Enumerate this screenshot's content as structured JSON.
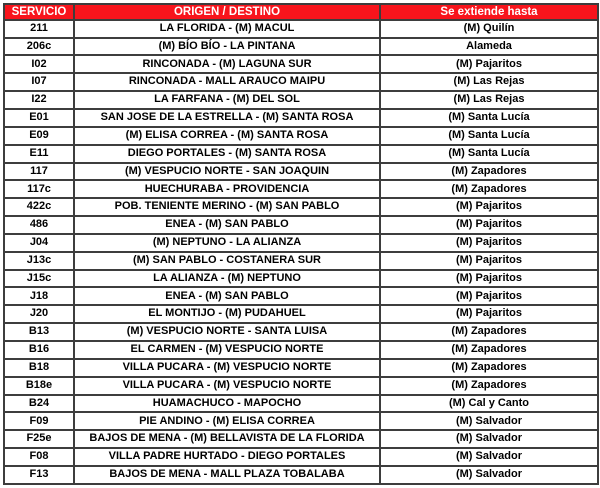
{
  "colors": {
    "header_bg": "#F8141C",
    "header_text": "#FFFFFF",
    "border": "#3D3D3D",
    "row_text": "#000000"
  },
  "table": {
    "columns": [
      {
        "label": "SERVICIO"
      },
      {
        "label": "ORIGEN / DESTINO"
      },
      {
        "label": "Se extiende hasta"
      }
    ],
    "rows": [
      {
        "service": "211",
        "route": "LA FLORIDA - (M) MACUL",
        "extends_to": "(M) Quilín"
      },
      {
        "service": "206c",
        "route": "(M) BÍO BÍO - LA PINTANA",
        "extends_to": "Alameda"
      },
      {
        "service": "I02",
        "route": "RINCONADA - (M) LAGUNA SUR",
        "extends_to": "(M) Pajaritos"
      },
      {
        "service": "I07",
        "route": "RINCONADA - MALL ARAUCO MAIPU",
        "extends_to": "(M) Las Rejas"
      },
      {
        "service": "I22",
        "route": "LA FARFANA - (M) DEL SOL",
        "extends_to": "(M) Las Rejas"
      },
      {
        "service": "E01",
        "route": "SAN JOSE DE LA ESTRELLA - (M) SANTA ROSA",
        "extends_to": "(M) Santa Lucía"
      },
      {
        "service": "E09",
        "route": "(M) ELISA CORREA - (M) SANTA ROSA",
        "extends_to": "(M) Santa Lucía"
      },
      {
        "service": "E11",
        "route": "DIEGO PORTALES - (M) SANTA ROSA",
        "extends_to": "(M) Santa Lucía"
      },
      {
        "service": "117",
        "route": "(M) VESPUCIO NORTE - SAN JOAQUIN",
        "extends_to": "(M) Zapadores"
      },
      {
        "service": "117c",
        "route": "HUECHURABA - PROVIDENCIA",
        "extends_to": "(M) Zapadores"
      },
      {
        "service": "422c",
        "route": "POB. TENIENTE MERINO -  (M) SAN PABLO",
        "extends_to": "(M) Pajaritos"
      },
      {
        "service": "486",
        "route": "ENEA - (M) SAN PABLO",
        "extends_to": "(M) Pajaritos"
      },
      {
        "service": "J04",
        "route": "(M) NEPTUNO - LA ALIANZA",
        "extends_to": "(M) Pajaritos"
      },
      {
        "service": "J13c",
        "route": "(M) SAN PABLO - COSTANERA SUR",
        "extends_to": "(M) Pajaritos"
      },
      {
        "service": "J15c",
        "route": "LA ALIANZA - (M) NEPTUNO",
        "extends_to": "(M) Pajaritos"
      },
      {
        "service": "J18",
        "route": "ENEA - (M) SAN PABLO",
        "extends_to": "(M) Pajaritos"
      },
      {
        "service": "J20",
        "route": "EL MONTIJO - (M) PUDAHUEL",
        "extends_to": "(M) Pajaritos"
      },
      {
        "service": "B13",
        "route": "(M) VESPUCIO NORTE - SANTA LUISA",
        "extends_to": "(M) Zapadores"
      },
      {
        "service": "B16",
        "route": "EL CARMEN - (M) VESPUCIO NORTE",
        "extends_to": "(M) Zapadores"
      },
      {
        "service": "B18",
        "route": "VILLA PUCARA - (M) VESPUCIO NORTE",
        "extends_to": "(M) Zapadores"
      },
      {
        "service": "B18e",
        "route": "VILLA PUCARA - (M) VESPUCIO NORTE",
        "extends_to": "(M) Zapadores"
      },
      {
        "service": "B24",
        "route": "HUAMACHUCO - MAPOCHO",
        "extends_to": "(M) Cal y Canto"
      },
      {
        "service": "F09",
        "route": "PIE ANDINO - (M) ELISA CORREA",
        "extends_to": "(M) Salvador"
      },
      {
        "service": "F25e",
        "route": "BAJOS DE MENA - (M) BELLAVISTA DE LA FLORIDA",
        "extends_to": "(M) Salvador"
      },
      {
        "service": "F08",
        "route": "VILLA PADRE HURTADO - DIEGO PORTALES",
        "extends_to": "(M) Salvador"
      },
      {
        "service": "F13",
        "route": "BAJOS DE MENA - MALL PLAZA TOBALABA",
        "extends_to": "(M) Salvador"
      }
    ]
  }
}
